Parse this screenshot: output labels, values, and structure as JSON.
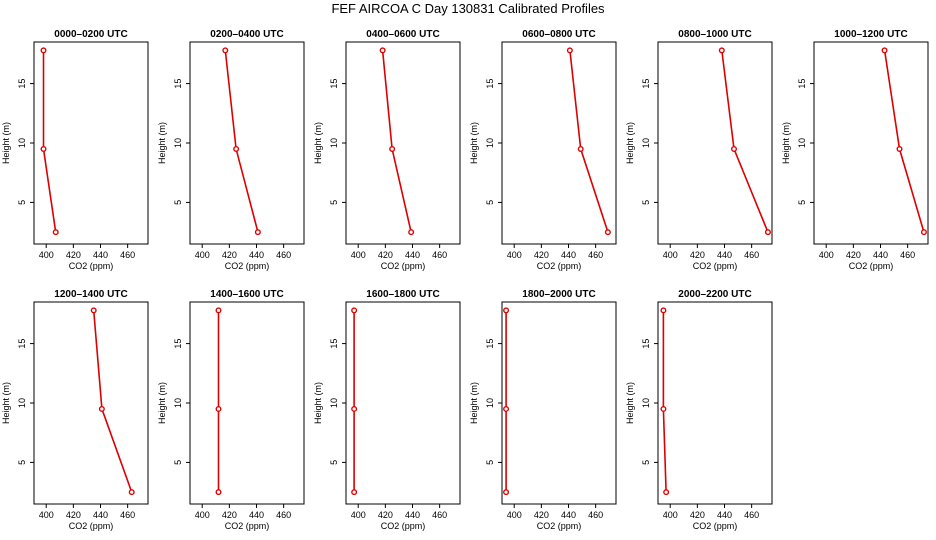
{
  "title": "FEF AIRCOA C  Day 130831  Calibrated Profiles",
  "chart_data": {
    "type": "line",
    "layout": "grid 2 rows x 6 columns",
    "xlabel": "CO2 (ppm)",
    "ylabel": "Height (m)",
    "xlim": [
      391,
      475
    ],
    "ylim": [
      1.5,
      18.5
    ],
    "xticks": [
      400,
      420,
      440,
      460
    ],
    "yticks": [
      5,
      10,
      15
    ],
    "heights": [
      2.5,
      9.5,
      17.8
    ],
    "panels": [
      {
        "title": "0000–0200 UTC",
        "co2": [
          407,
          398,
          398
        ]
      },
      {
        "title": "0200–0400 UTC",
        "co2": [
          441,
          425,
          417
        ]
      },
      {
        "title": "0400–0600 UTC",
        "co2": [
          439,
          425,
          418
        ]
      },
      {
        "title": "0600–0800 UTC",
        "co2": [
          469,
          449,
          441
        ]
      },
      {
        "title": "0800–1000 UTC",
        "co2": [
          472,
          447,
          438
        ]
      },
      {
        "title": "1000–1200 UTC",
        "co2": [
          472,
          454,
          443
        ]
      },
      {
        "title": "1200–1400 UTC",
        "co2": [
          463,
          441,
          435
        ]
      },
      {
        "title": "1400–1600 UTC",
        "co2": [
          412,
          412,
          412
        ]
      },
      {
        "title": "1600–1800 UTC",
        "co2": [
          397,
          397,
          397
        ]
      },
      {
        "title": "1800–2000 UTC",
        "co2": [
          394,
          394,
          394
        ]
      },
      {
        "title": "2000–2200 UTC",
        "co2": [
          397,
          395,
          395
        ]
      }
    ]
  }
}
